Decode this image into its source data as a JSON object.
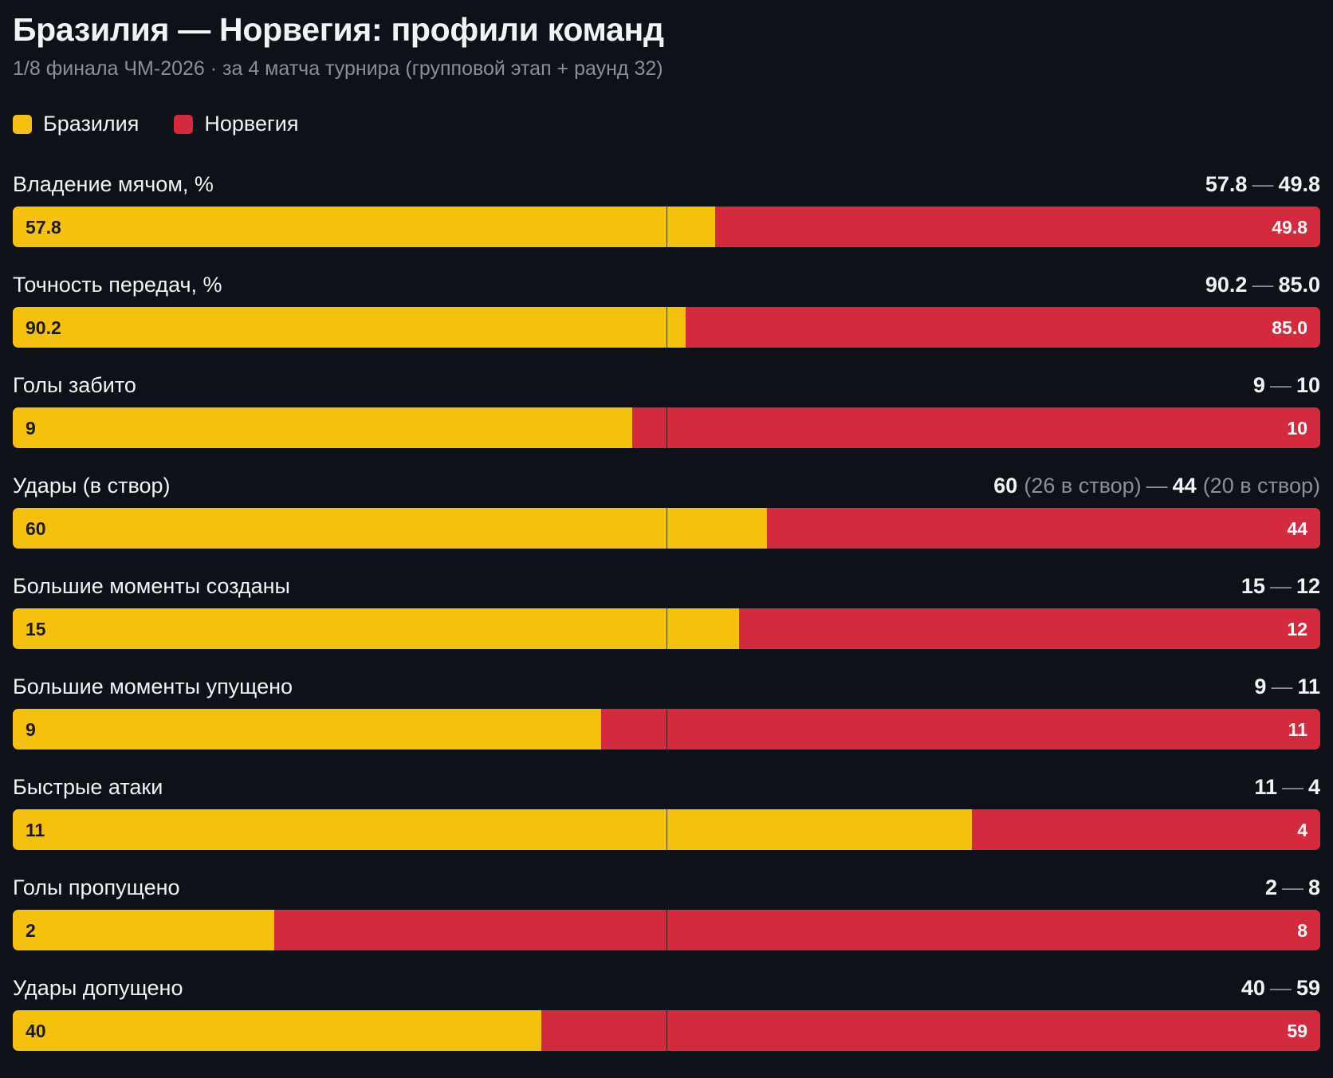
{
  "title": "Бразилия — Норвегия: профили команд",
  "subtitle": "1/8 финала ЧМ-2026 · за 4 матча турнира (групповой этап + раунд 32)",
  "colors": {
    "team_a": "#f4c20d",
    "team_b": "#d42a3e",
    "background": "#0e1117"
  },
  "chart_data": {
    "type": "bar",
    "orientation": "horizontal-stacked-diverging",
    "series": [
      {
        "name": "Бразилия",
        "values": [
          57.8,
          90.2,
          9,
          60,
          15,
          9,
          11,
          2,
          40
        ]
      },
      {
        "name": "Норвегия",
        "values": [
          49.8,
          85.0,
          10,
          44,
          12,
          11,
          4,
          8,
          59
        ]
      }
    ],
    "metrics": [
      {
        "label": "Владение мячом, %",
        "a": 57.8,
        "b": 49.8,
        "a_text": "57.8",
        "b_text": "49.8"
      },
      {
        "label": "Точность передач, %",
        "a": 90.2,
        "b": 85.0,
        "a_text": "90.2",
        "b_text": "85.0"
      },
      {
        "label": "Голы забито",
        "a": 9,
        "b": 10,
        "a_text": "9",
        "b_text": "10"
      },
      {
        "label": "Удары (в створ)",
        "a": 60,
        "b": 44,
        "a_text": "60",
        "b_text": "44",
        "a_note": "(26 в створ)",
        "b_note": "(20 в створ)"
      },
      {
        "label": "Большие моменты созданы",
        "a": 15,
        "b": 12,
        "a_text": "15",
        "b_text": "12"
      },
      {
        "label": "Большие моменты упущено",
        "a": 9,
        "b": 11,
        "a_text": "9",
        "b_text": "11"
      },
      {
        "label": "Быстрые атаки",
        "a": 11,
        "b": 4,
        "a_text": "11",
        "b_text": "4"
      },
      {
        "label": "Голы пропущено",
        "a": 2,
        "b": 8,
        "a_text": "2",
        "b_text": "8"
      },
      {
        "label": "Удары допущено",
        "a": 40,
        "b": 59,
        "a_text": "40",
        "b_text": "59"
      }
    ]
  }
}
